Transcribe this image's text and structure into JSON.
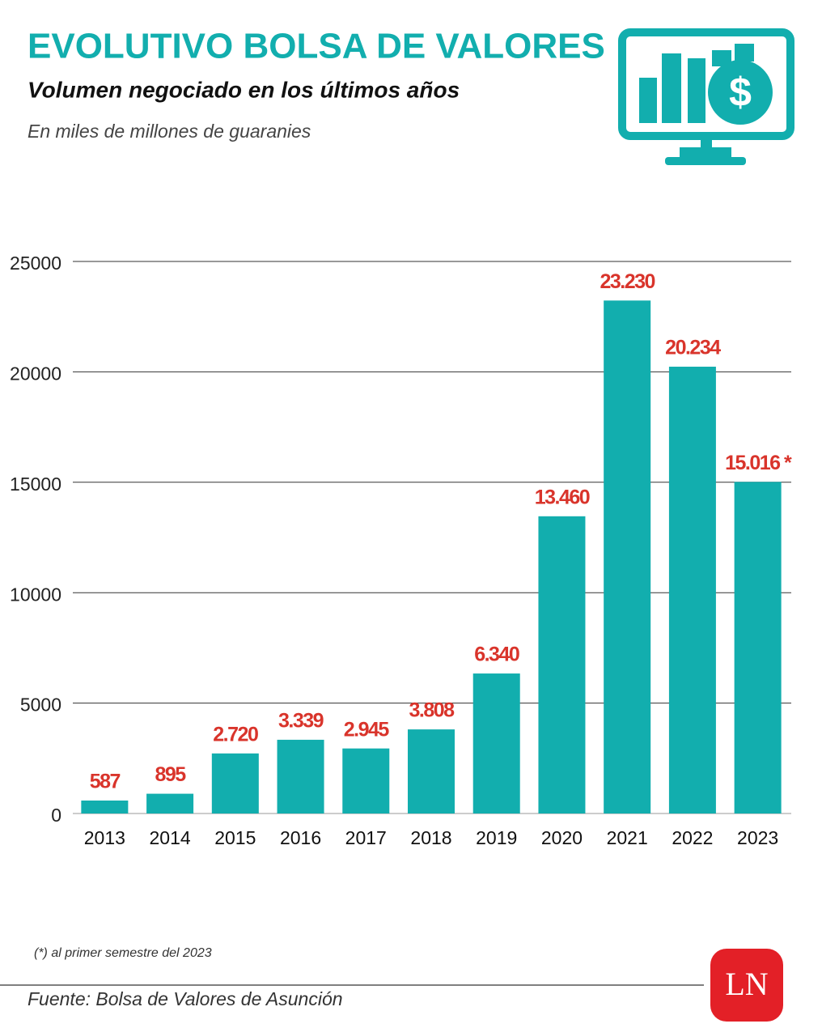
{
  "chart_data": {
    "type": "bar",
    "title": "EVOLUTIVO BOLSA DE VALORES",
    "subtitle": "Volumen negociado en los últimos años",
    "unit_label": "En miles de millones de guaranies",
    "categories": [
      "2013",
      "2014",
      "2015",
      "2016",
      "2017",
      "2018",
      "2019",
      "2020",
      "2021",
      "2022",
      "2023"
    ],
    "values": [
      587,
      895,
      2720,
      3339,
      2945,
      3808,
      6340,
      13460,
      23230,
      20234,
      15016
    ],
    "value_labels": [
      "587",
      "895",
      "2.720",
      "3.339",
      "2.945",
      "3.808",
      "6.340",
      "13.460",
      "23.230",
      "20.234",
      "15.016 *"
    ],
    "color": "#12aeae",
    "label_color": "#d9342b",
    "ylim": [
      0,
      25000
    ],
    "yticks": [
      0,
      5000,
      10000,
      15000,
      20000,
      25000
    ],
    "grid": true,
    "footnote": "(*) al primer semestre del 2023",
    "source": "Fuente: Bolsa de Valores de Asunción",
    "logo": "LN"
  }
}
